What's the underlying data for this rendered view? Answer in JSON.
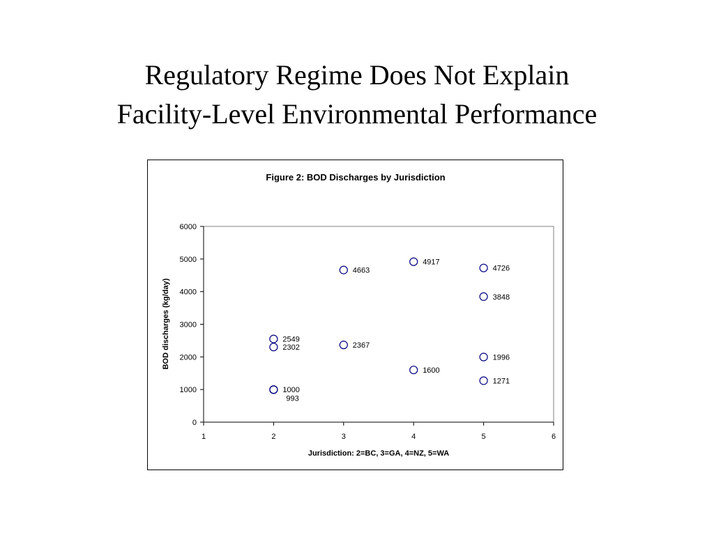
{
  "slide": {
    "title_line1": "Regulatory Regime Does Not Explain",
    "title_line2": "Facility-Level Environmental Performance"
  },
  "chart_data": {
    "type": "scatter",
    "title": "Figure 2: BOD Discharges by Jurisdiction",
    "xlabel": "Jurisdiction: 2=BC, 3=GA, 4=NZ, 5=WA",
    "ylabel": "BOD discharges (kg/day)",
    "xlim": [
      1,
      6
    ],
    "ylim": [
      0,
      6000
    ],
    "xticks": [
      1,
      2,
      3,
      4,
      5,
      6
    ],
    "yticks": [
      0,
      1000,
      2000,
      3000,
      4000,
      5000,
      6000
    ],
    "grid": false,
    "legend": "none",
    "marker": "open-circle",
    "marker_color": "#000080",
    "points": [
      {
        "x": 2,
        "y": 2549,
        "label": "2549"
      },
      {
        "x": 2,
        "y": 2302,
        "label": "2302"
      },
      {
        "x": 2,
        "y": 1000,
        "label": "1000"
      },
      {
        "x": 2,
        "y": 993,
        "label": "993"
      },
      {
        "x": 3,
        "y": 4663,
        "label": "4663"
      },
      {
        "x": 3,
        "y": 2367,
        "label": "2367"
      },
      {
        "x": 4,
        "y": 4917,
        "label": "4917"
      },
      {
        "x": 4,
        "y": 1600,
        "label": "1600"
      },
      {
        "x": 5,
        "y": 4726,
        "label": "4726"
      },
      {
        "x": 5,
        "y": 3848,
        "label": "3848"
      },
      {
        "x": 5,
        "y": 1996,
        "label": "1996"
      },
      {
        "x": 5,
        "y": 1271,
        "label": "1271"
      }
    ]
  }
}
